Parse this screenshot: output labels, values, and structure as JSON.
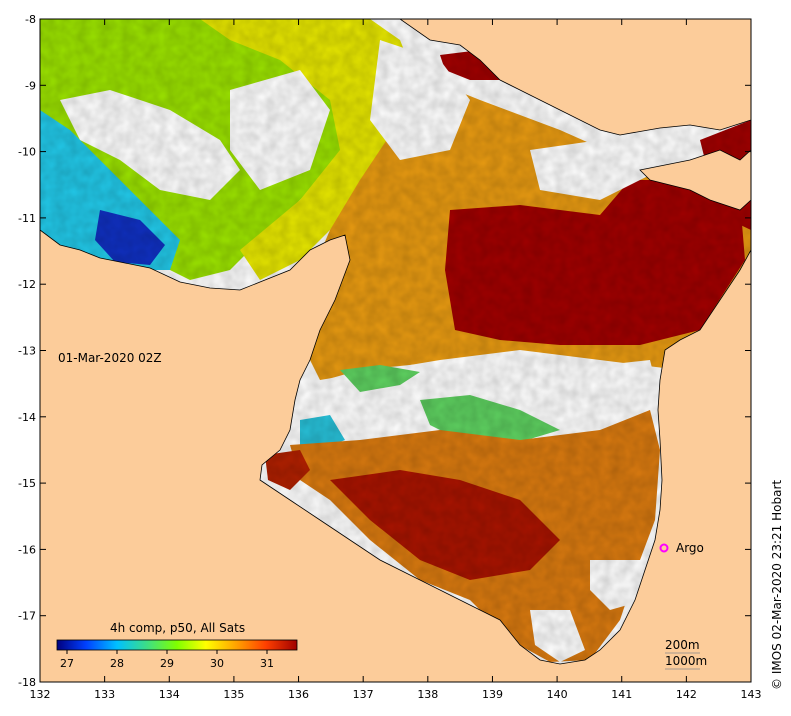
{
  "map": {
    "timestamp": "01-Mar-2020 02Z",
    "composite_label": "4h comp, p50, All Sats",
    "credit": "© IMOS 02-Mar-2020 23:21 Hobart",
    "argo_label": "Argo",
    "bathymetry_labels": [
      "200m",
      "1000m"
    ],
    "lon_ticks": [
      "132",
      "133",
      "134",
      "135",
      "136",
      "137",
      "138",
      "139",
      "140",
      "141",
      "142",
      "143"
    ],
    "lat_ticks": [
      "-8",
      "-9",
      "-10",
      "-11",
      "-12",
      "-13",
      "-14",
      "-15",
      "-16",
      "-17",
      "-18"
    ],
    "colorbar": {
      "ticks": [
        "27",
        "28",
        "29",
        "30",
        "31"
      ],
      "range": [
        26.8,
        31.6
      ],
      "colors": [
        "#00007f",
        "#0040ff",
        "#00c0ff",
        "#40e080",
        "#80ff00",
        "#ffff00",
        "#ffa000",
        "#ff4000",
        "#a00000"
      ]
    },
    "land_color": "#fccc9a",
    "argo_color": "#ff00ff",
    "extent": {
      "lon": [
        132,
        143
      ],
      "lat": [
        -18,
        -8
      ]
    }
  }
}
